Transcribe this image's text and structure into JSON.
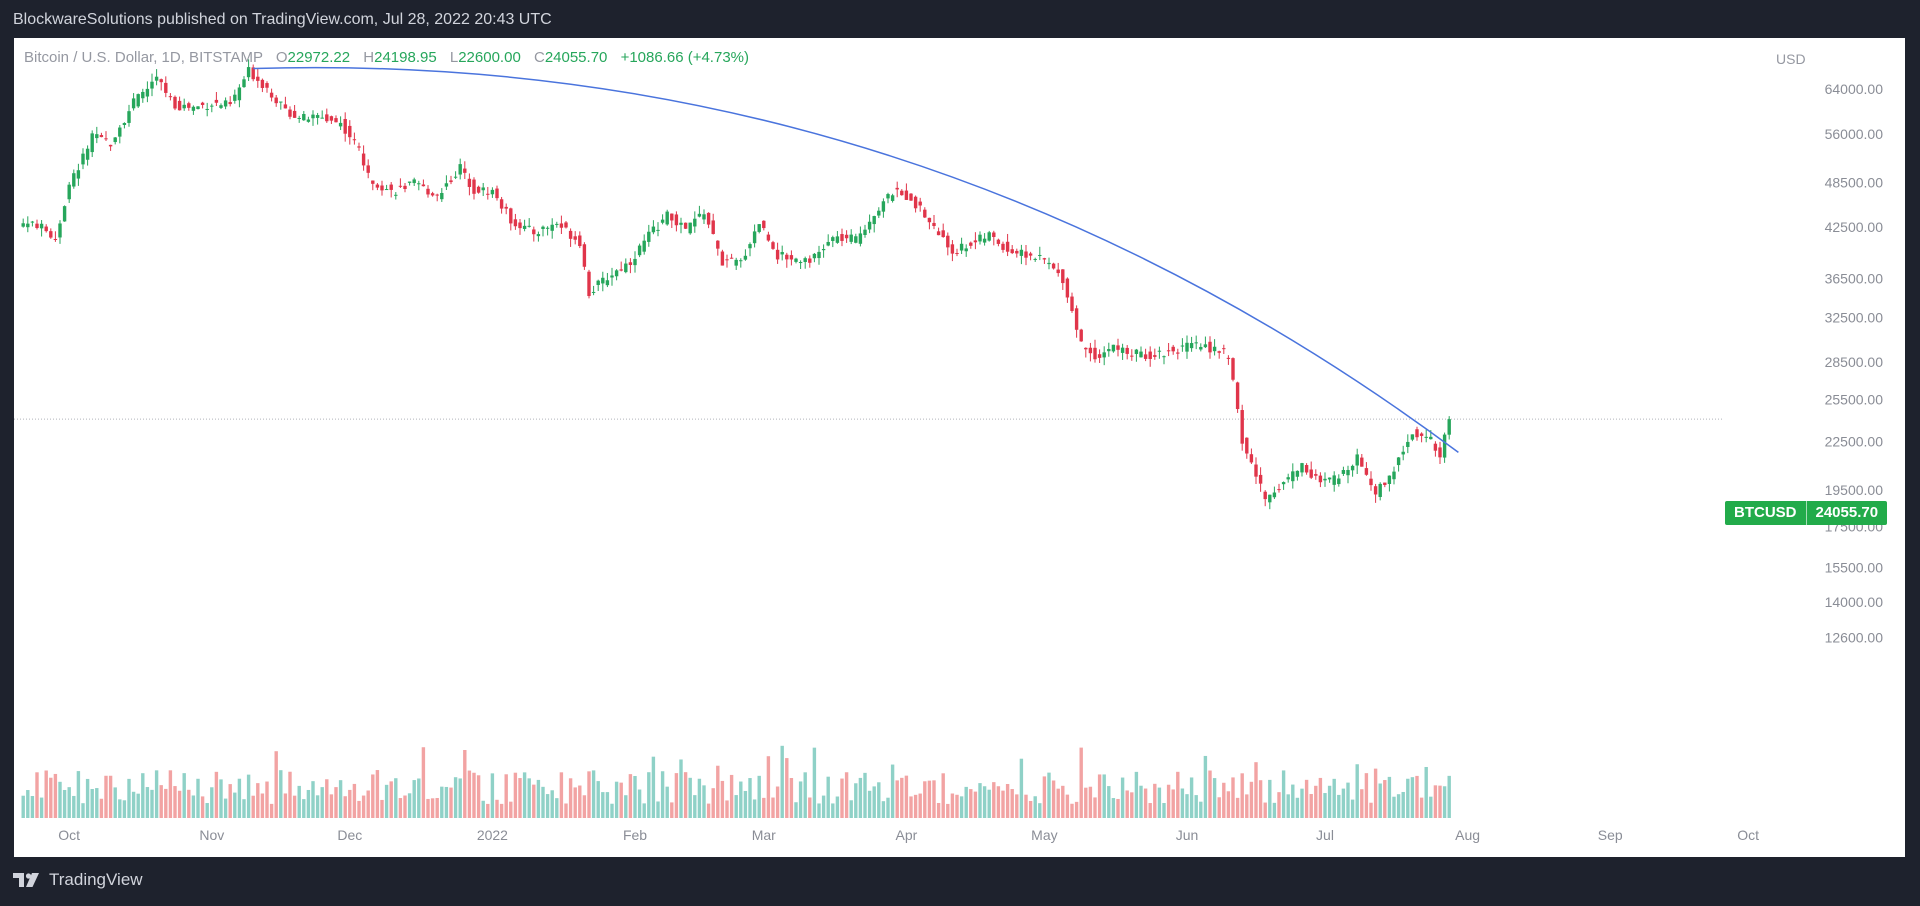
{
  "header": {
    "published": "BlockwareSolutions published on TradingView.com, Jul 28, 2022 20:43 UTC"
  },
  "legend": {
    "symbol": "Bitcoin / U.S. Dollar, 1D, BITSTAMP",
    "open_label": "O",
    "open": "22972.22",
    "high_label": "H",
    "high": "24198.95",
    "low_label": "L",
    "low": "22600.00",
    "close_label": "C",
    "close": "24055.70",
    "change": "+1086.66 (+4.73%)"
  },
  "currency": "USD",
  "price_badge": {
    "ticker": "BTCUSD",
    "price": "24055.70",
    "color": "#22ab4a"
  },
  "footer": {
    "brand": "TradingView"
  },
  "colors": {
    "up": "#26a65b",
    "down": "#e0354a",
    "vol_up": "#8fd1c7",
    "vol_down": "#f2a3a3",
    "trendline": "#4a74dd"
  },
  "chart_data": {
    "type": "candlestick",
    "y_scale": "log",
    "y_ticks": [
      "64000.00",
      "56000.00",
      "48500.00",
      "42500.00",
      "36500.00",
      "32500.00",
      "28500.00",
      "25500.00",
      "22500.00",
      "19500.00",
      "17500.00",
      "15500.00",
      "14000.00",
      "12600.00"
    ],
    "x_ticks": [
      "Oct",
      "Nov",
      "Dec",
      "2022",
      "Feb",
      "Mar",
      "Apr",
      "May",
      "Jun",
      "Jul",
      "Aug",
      "Sep",
      "Oct"
    ],
    "close_series": [
      [
        "2021-09-21",
        43000
      ],
      [
        "2021-09-24",
        42800
      ],
      [
        "2021-09-28",
        41100
      ],
      [
        "2021-10-01",
        48000
      ],
      [
        "2021-10-06",
        55400
      ],
      [
        "2021-10-10",
        54700
      ],
      [
        "2021-10-15",
        61500
      ],
      [
        "2021-10-20",
        66000
      ],
      [
        "2021-10-24",
        61000
      ],
      [
        "2021-10-28",
        60600
      ],
      [
        "2021-11-01",
        61300
      ],
      [
        "2021-11-05",
        61000
      ],
      [
        "2021-11-09",
        67500
      ],
      [
        "2021-11-13",
        64200
      ],
      [
        "2021-11-17",
        60000
      ],
      [
        "2021-11-21",
        58700
      ],
      [
        "2021-11-25",
        58900
      ],
      [
        "2021-11-29",
        57800
      ],
      [
        "2021-12-03",
        53600
      ],
      [
        "2021-12-05",
        49300
      ],
      [
        "2021-12-10",
        47200
      ],
      [
        "2021-12-15",
        48300
      ],
      [
        "2021-12-20",
        46700
      ],
      [
        "2021-12-25",
        50700
      ],
      [
        "2021-12-28",
        47500
      ],
      [
        "2022-01-01",
        47300
      ],
      [
        "2022-01-05",
        43400
      ],
      [
        "2022-01-10",
        41800
      ],
      [
        "2022-01-15",
        43000
      ],
      [
        "2022-01-20",
        40700
      ],
      [
        "2022-01-22",
        35000
      ],
      [
        "2022-01-27",
        37000
      ],
      [
        "2022-01-31",
        38400
      ],
      [
        "2022-02-04",
        41500
      ],
      [
        "2022-02-08",
        44000
      ],
      [
        "2022-02-12",
        42200
      ],
      [
        "2022-02-16",
        44500
      ],
      [
        "2022-02-20",
        38300
      ],
      [
        "2022-02-24",
        38300
      ],
      [
        "2022-02-28",
        43200
      ],
      [
        "2022-03-04",
        39100
      ],
      [
        "2022-03-08",
        38700
      ],
      [
        "2022-03-12",
        38800
      ],
      [
        "2022-03-16",
        41100
      ],
      [
        "2022-03-21",
        41000
      ],
      [
        "2022-03-25",
        44300
      ],
      [
        "2022-03-29",
        47100
      ],
      [
        "2022-04-02",
        46400
      ],
      [
        "2022-04-06",
        43200
      ],
      [
        "2022-04-11",
        39500
      ],
      [
        "2022-04-15",
        40500
      ],
      [
        "2022-04-19",
        41500
      ],
      [
        "2022-04-23",
        39700
      ],
      [
        "2022-04-27",
        39200
      ],
      [
        "2022-05-01",
        38500
      ],
      [
        "2022-05-05",
        36500
      ],
      [
        "2022-05-09",
        30100
      ],
      [
        "2022-05-12",
        29000
      ],
      [
        "2022-05-16",
        29800
      ],
      [
        "2022-05-20",
        29200
      ],
      [
        "2022-05-24",
        29100
      ],
      [
        "2022-05-28",
        29400
      ],
      [
        "2022-06-01",
        29800
      ],
      [
        "2022-06-05",
        29900
      ],
      [
        "2022-06-10",
        29100
      ],
      [
        "2022-06-13",
        22500
      ],
      [
        "2022-06-18",
        19000
      ],
      [
        "2022-06-22",
        20000
      ],
      [
        "2022-06-26",
        21000
      ],
      [
        "2022-06-30",
        19900
      ],
      [
        "2022-07-04",
        20200
      ],
      [
        "2022-07-08",
        21600
      ],
      [
        "2022-07-12",
        19300
      ],
      [
        "2022-07-16",
        20800
      ],
      [
        "2022-07-20",
        23200
      ],
      [
        "2022-07-24",
        22600
      ],
      [
        "2022-07-26",
        21200
      ],
      [
        "2022-07-27",
        22970
      ],
      [
        "2022-07-28",
        24055.7
      ]
    ],
    "trendline": {
      "from": [
        "2021-11-10",
        68000
      ],
      "to": [
        "2022-07-30",
        21800
      ],
      "shape": "curved"
    }
  }
}
